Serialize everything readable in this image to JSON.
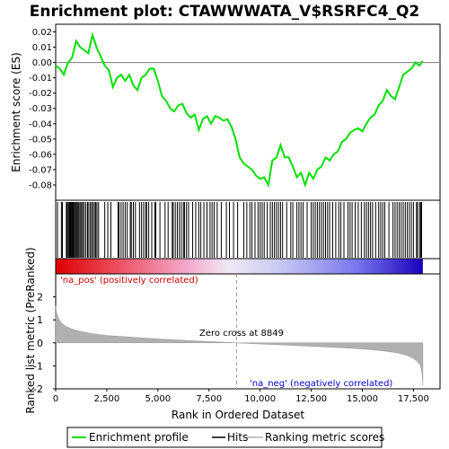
{
  "chart_data": {
    "type": "line",
    "title": "Enrichment plot: CTAWWWATA_V$RSRFC4_Q2",
    "colors": {
      "profile": "#00e000",
      "hits": "#000000",
      "metric": "#b0b0b0",
      "pos_label": "#cc0000",
      "neg_label": "#0000cc",
      "frame": "#000000"
    },
    "es_panel": {
      "ylabel": "Enrichment score (ES)",
      "ylim": [
        -0.09,
        0.025
      ],
      "yticks": [
        "0.02",
        "0.01",
        "0.00",
        "-0.01",
        "-0.02",
        "-0.03",
        "-0.04",
        "-0.05",
        "-0.06",
        "-0.07",
        "-0.08"
      ],
      "ytick_values": [
        0.02,
        0.01,
        0.0,
        -0.01,
        -0.02,
        -0.03,
        -0.04,
        -0.05,
        -0.06,
        -0.07,
        -0.08
      ],
      "profile_x": [
        0,
        200,
        400,
        600,
        800,
        1000,
        1200,
        1400,
        1600,
        1800,
        2000,
        2200,
        2400,
        2600,
        2800,
        3000,
        3200,
        3400,
        3600,
        3800,
        4000,
        4200,
        4400,
        4600,
        4800,
        5000,
        5200,
        5400,
        5600,
        5800,
        6000,
        6200,
        6400,
        6600,
        6800,
        7000,
        7200,
        7400,
        7600,
        7800,
        8000,
        8200,
        8400,
        8600,
        8800,
        9000,
        9200,
        9400,
        9600,
        9800,
        10000,
        10200,
        10400,
        10600,
        10800,
        11000,
        11200,
        11400,
        11600,
        11800,
        12000,
        12200,
        12400,
        12600,
        12800,
        13000,
        13200,
        13400,
        13600,
        13800,
        14000,
        14200,
        14400,
        14600,
        14800,
        15000,
        15200,
        15400,
        15600,
        15800,
        16000,
        16200,
        16400,
        16600,
        16800,
        17000,
        17200,
        17400,
        17600,
        17800,
        17950
      ],
      "profile_y": [
        -0.002,
        -0.004,
        -0.008,
        0.0,
        0.003,
        0.014,
        0.01,
        0.008,
        0.006,
        0.018,
        0.01,
        0.004,
        -0.002,
        -0.005,
        -0.016,
        -0.01,
        -0.008,
        -0.012,
        -0.008,
        -0.015,
        -0.018,
        -0.01,
        -0.008,
        -0.004,
        -0.004,
        -0.012,
        -0.022,
        -0.025,
        -0.03,
        -0.032,
        -0.028,
        -0.027,
        -0.033,
        -0.036,
        -0.034,
        -0.044,
        -0.037,
        -0.035,
        -0.04,
        -0.035,
        -0.036,
        -0.038,
        -0.037,
        -0.042,
        -0.05,
        -0.062,
        -0.066,
        -0.068,
        -0.07,
        -0.074,
        -0.076,
        -0.075,
        -0.08,
        -0.064,
        -0.062,
        -0.054,
        -0.062,
        -0.062,
        -0.068,
        -0.075,
        -0.072,
        -0.08,
        -0.072,
        -0.076,
        -0.07,
        -0.068,
        -0.062,
        -0.064,
        -0.06,
        -0.058,
        -0.052,
        -0.05,
        -0.046,
        -0.044,
        -0.043,
        -0.045,
        -0.04,
        -0.036,
        -0.034,
        -0.028,
        -0.025,
        -0.018,
        -0.022,
        -0.024,
        -0.016,
        -0.008,
        -0.006,
        -0.004,
        0.0,
        -0.002,
        0.001
      ]
    },
    "hits_panel": {
      "hit_positions": [
        90,
        280,
        330,
        520,
        560,
        610,
        660,
        700,
        730,
        760,
        800,
        830,
        870,
        910,
        960,
        1000,
        1050,
        1100,
        1150,
        1220,
        1270,
        1330,
        1400,
        1480,
        1560,
        1620,
        1700,
        1760,
        1830,
        1900,
        1960,
        2020,
        2100,
        2400,
        2550,
        2700,
        3050,
        3100,
        3200,
        3300,
        3400,
        3500,
        3650,
        3700,
        3800,
        3900,
        4100,
        4200,
        4300,
        4400,
        4450,
        4550,
        4700,
        4850,
        4900,
        5100,
        5350,
        5500,
        5700,
        5750,
        5850,
        5950,
        6050,
        6150,
        6250,
        6300,
        6400,
        6500,
        6700,
        6850,
        7000,
        7100,
        7250,
        7400,
        7550,
        7650,
        7750,
        7900,
        8100,
        8350,
        8500,
        8700,
        8900,
        9200,
        9350,
        9500,
        9600,
        9750,
        9900,
        10000,
        10100,
        10200,
        10350,
        10500,
        10600,
        10700,
        10800,
        10900,
        11000,
        11100,
        11300,
        11500,
        11600,
        11800,
        11900,
        12000,
        12100,
        12300,
        12500,
        12600,
        12700,
        12800,
        12900,
        13000,
        13100,
        13200,
        13300,
        13400,
        13550,
        13700,
        13850,
        13950,
        14100,
        14300,
        14400,
        14500,
        14650,
        14800,
        14950,
        15100,
        15200,
        15300,
        15400,
        15500,
        15650,
        15800,
        15900,
        16000,
        16100,
        16300,
        16500,
        16600,
        16700,
        16800,
        16900,
        17000,
        17100,
        17200,
        17300,
        17400,
        17500,
        17650,
        17700,
        17800,
        17850,
        17900
      ]
    },
    "metric_panel": {
      "ylabel": "Ranked list metric (PreRanked)",
      "xlabel": "Rank in Ordered Dataset",
      "ylim": [
        -2,
        3
      ],
      "yticks": [
        "2",
        "1",
        "0",
        "-1",
        "-2"
      ],
      "ytick_values": [
        2,
        1,
        0,
        -1,
        -2
      ],
      "xlim": [
        0,
        18800
      ],
      "xticks": [
        "0",
        "2,500",
        "5,000",
        "7,500",
        "10,000",
        "12,500",
        "15,000",
        "17,500"
      ],
      "xtick_values": [
        0,
        2500,
        5000,
        7500,
        10000,
        12500,
        15000,
        17500
      ],
      "metric_x": [
        0,
        50,
        150,
        300,
        500,
        800,
        1200,
        1800,
        2500,
        3500,
        4500,
        5500,
        6500,
        7500,
        8500,
        8849,
        9500,
        10500,
        11500,
        12500,
        13500,
        14500,
        15500,
        16200,
        16800,
        17200,
        17500,
        17700,
        17850,
        17920,
        17960
      ],
      "metric_y": [
        1.6,
        1.3,
        1.05,
        0.85,
        0.72,
        0.6,
        0.5,
        0.4,
        0.32,
        0.26,
        0.2,
        0.15,
        0.1,
        0.06,
        0.02,
        0.0,
        -0.03,
        -0.07,
        -0.11,
        -0.15,
        -0.19,
        -0.24,
        -0.3,
        -0.37,
        -0.45,
        -0.55,
        -0.68,
        -0.82,
        -1.0,
        -1.35,
        -1.85
      ],
      "zero_cross": 8849,
      "zero_cross_label": "Zero cross at 8849",
      "pos_label": "'na_pos' (positively correlated)",
      "neg_label": "'na_neg' (negatively correlated)"
    },
    "legend": [
      "Enrichment profile",
      "Hits",
      "Ranking metric scores"
    ]
  }
}
